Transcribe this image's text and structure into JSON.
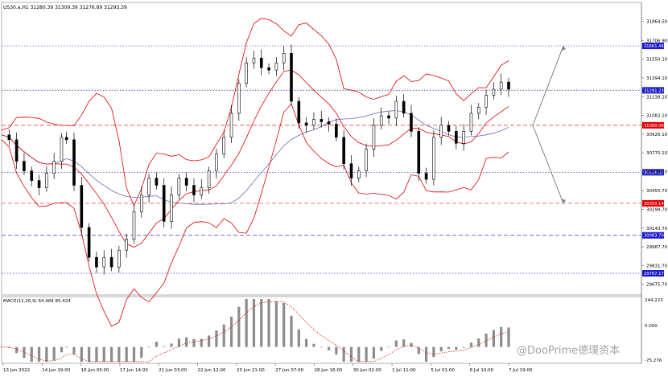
{
  "header": {
    "symbol_line": "US30.a,H1  31280.39 31309.39 31276.89 31293.39"
  },
  "macd": {
    "label": "MACD(12,26,9) 64.484 85.424",
    "axis_top": "244.223",
    "axis_bottom": "-75.276",
    "axis_mid": "0.000"
  },
  "watermark": "@DooPrime德璞资本",
  "colors": {
    "background": "#ffffff",
    "candle": "#000000",
    "bollinger": "#e00000",
    "ma": "#6a6ab8",
    "projection": "#808080",
    "blue_level": "#1a1acc",
    "red_level": "#e00000",
    "macd_hist": "#8c8c8c",
    "macd_signal": "#e00000"
  },
  "chart_data": {
    "type": "line",
    "title": "US30.a,H1",
    "ohlc_last": {
      "open": 31280.39,
      "high": 31309.39,
      "low": 31276.89,
      "close": 31293.39
    },
    "x_tick_labels": [
      "13 Jun 2022",
      "14 Jun 19:00",
      "16 Jun 05:00",
      "17 Jun 14:00",
      "21 Jun 03:00",
      "22 Jun 12:00",
      "23 Jun 21:00",
      "27 Jun 07:00",
      "28 Jun 16:00",
      "30 Jun 02:00",
      "1 Jul 11:00",
      "5 Jul 01:00",
      "6 Jul 10:00",
      "7 Jul 19:00"
    ],
    "y_tick_labels": [
      "31864.50",
      "31706.90",
      "31550.10",
      "31394.10",
      "31238.10",
      "31082.10",
      "30926.10",
      "30770.10",
      "30614.10",
      "30455.70",
      "30299.70",
      "30143.70",
      "29987.70",
      "29831.70",
      "29675.70"
    ],
    "y_range": [
      29600,
      31990
    ],
    "price_series": [
      {
        "x": 0,
        "y": 30920
      },
      {
        "x": 3,
        "y": 30880
      },
      {
        "x": 6,
        "y": 30700
      },
      {
        "x": 9,
        "y": 30620
      },
      {
        "x": 12,
        "y": 30540
      },
      {
        "x": 15,
        "y": 30480
      },
      {
        "x": 18,
        "y": 30600
      },
      {
        "x": 21,
        "y": 30700
      },
      {
        "x": 24,
        "y": 30900
      },
      {
        "x": 26,
        "y": 30880
      },
      {
        "x": 29,
        "y": 30500
      },
      {
        "x": 32,
        "y": 30150
      },
      {
        "x": 35,
        "y": 29900
      },
      {
        "x": 38,
        "y": 29820
      },
      {
        "x": 41,
        "y": 29900
      },
      {
        "x": 44,
        "y": 29820
      },
      {
        "x": 47,
        "y": 29960
      },
      {
        "x": 50,
        "y": 30050
      },
      {
        "x": 53,
        "y": 30280
      },
      {
        "x": 56,
        "y": 30420
      },
      {
        "x": 59,
        "y": 30560
      },
      {
        "x": 62,
        "y": 30500
      },
      {
        "x": 65,
        "y": 30200
      },
      {
        "x": 68,
        "y": 30420
      },
      {
        "x": 71,
        "y": 30560
      },
      {
        "x": 74,
        "y": 30500
      },
      {
        "x": 77,
        "y": 30420
      },
      {
        "x": 80,
        "y": 30480
      },
      {
        "x": 83,
        "y": 30620
      },
      {
        "x": 86,
        "y": 30760
      },
      {
        "x": 89,
        "y": 30900
      },
      {
        "x": 92,
        "y": 31100
      },
      {
        "x": 95,
        "y": 31350
      },
      {
        "x": 98,
        "y": 31520
      },
      {
        "x": 101,
        "y": 31560
      },
      {
        "x": 104,
        "y": 31480
      },
      {
        "x": 107,
        "y": 31460
      },
      {
        "x": 110,
        "y": 31520
      },
      {
        "x": 113,
        "y": 31600
      },
      {
        "x": 116,
        "y": 31200
      },
      {
        "x": 119,
        "y": 31020
      },
      {
        "x": 122,
        "y": 31000
      },
      {
        "x": 125,
        "y": 31050
      },
      {
        "x": 128,
        "y": 31030
      },
      {
        "x": 131,
        "y": 31010
      },
      {
        "x": 134,
        "y": 30900
      },
      {
        "x": 137,
        "y": 30680
      },
      {
        "x": 140,
        "y": 30560
      },
      {
        "x": 143,
        "y": 30620
      },
      {
        "x": 146,
        "y": 30800
      },
      {
        "x": 149,
        "y": 31000
      },
      {
        "x": 152,
        "y": 31080
      },
      {
        "x": 155,
        "y": 31060
      },
      {
        "x": 158,
        "y": 31200
      },
      {
        "x": 161,
        "y": 31100
      },
      {
        "x": 164,
        "y": 30950
      },
      {
        "x": 167,
        "y": 30600
      },
      {
        "x": 170,
        "y": 30550
      },
      {
        "x": 173,
        "y": 30900
      },
      {
        "x": 176,
        "y": 31000
      },
      {
        "x": 179,
        "y": 30950
      },
      {
        "x": 182,
        "y": 30850
      },
      {
        "x": 185,
        "y": 30950
      },
      {
        "x": 188,
        "y": 31100
      },
      {
        "x": 191,
        "y": 31150
      },
      {
        "x": 194,
        "y": 31250
      },
      {
        "x": 197,
        "y": 31300
      },
      {
        "x": 200,
        "y": 31360
      },
      {
        "x": 203,
        "y": 31300
      }
    ],
    "levels": [
      {
        "value": 31661.46,
        "label": "31661.46",
        "color": "blue",
        "style": "dotted"
      },
      {
        "value": 31291.23,
        "label": "31291.23",
        "color": "blue",
        "style": "dotted"
      },
      {
        "value": 31000.0,
        "label": "31000.00",
        "color": "red",
        "style": "dashed"
      },
      {
        "value": 30608.62,
        "label": "30608.62",
        "color": "blue",
        "style": "dotted"
      },
      {
        "value": 30350.14,
        "label": "30350.14",
        "color": "red",
        "style": "dashed"
      },
      {
        "value": 30083.7,
        "label": "30083.70",
        "color": "blue",
        "style": "dashed"
      },
      {
        "value": 29767.17,
        "label": "29767.17",
        "color": "blue",
        "style": "dotted"
      }
    ],
    "projection": [
      {
        "from": 31000,
        "to": 31661,
        "direction": "up"
      },
      {
        "from": 31000,
        "to": 30350,
        "direction": "down"
      }
    ],
    "macd": {
      "label": "MACD(12,26,9)",
      "macd_value": 64.484,
      "signal_value": 85.424,
      "y_range": [
        -75.276,
        244.223
      ]
    }
  }
}
